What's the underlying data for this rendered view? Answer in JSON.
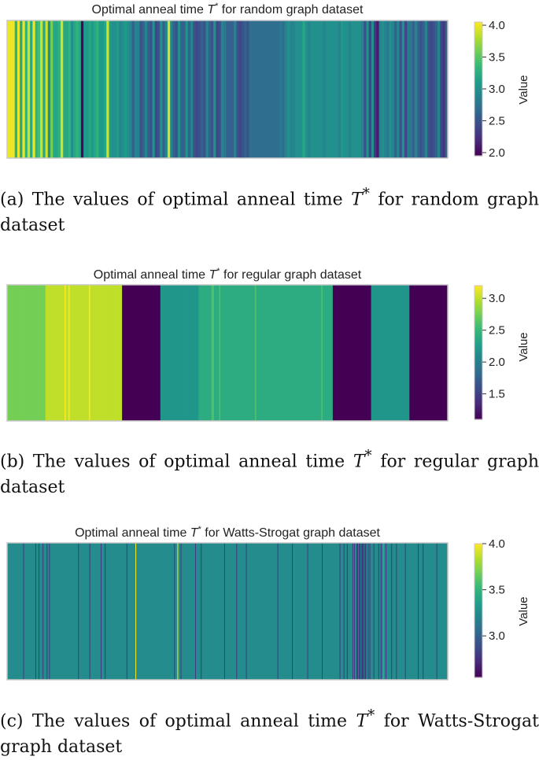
{
  "palette": [
    "#440154",
    "#482878",
    "#3e4989",
    "#31688e",
    "#26828e",
    "#1f9e89",
    "#35b779",
    "#6ece58",
    "#b5de2b",
    "#fde725"
  ],
  "chart_data": [
    {
      "type": "heatmap",
      "title": "Optimal anneal time T* for random graph dataset",
      "title_main": "Optimal anneal time ",
      "title_sym": "T",
      "title_sup": "*",
      "title_rest": " for random graph dataset",
      "colorbar_label": "Value",
      "vmin": 1.95,
      "vmax": 4.05,
      "colorbar_ticks": [
        2.0,
        2.5,
        3.0,
        3.5,
        4.0
      ],
      "colorbar_tick_labels": [
        "2.0",
        "2.5",
        "3.0",
        "3.5",
        "4.0"
      ],
      "values": [
        4.0,
        4.0,
        4.0,
        3.3,
        4.0,
        3.2,
        4.0,
        3.3,
        3.9,
        3.2,
        4.0,
        3.3,
        3.4,
        3.9,
        3.2,
        3.9,
        3.0,
        3.6,
        3.2,
        3.2,
        3.3,
        3.9,
        3.2,
        3.2,
        3.3,
        3.0,
        3.2,
        3.3,
        3.2,
        2.0,
        3.1,
        3.1,
        3.2,
        3.1,
        3.2,
        3.3,
        3.1,
        3.1,
        3.2,
        3.9,
        3.1,
        3.0,
        3.0,
        3.1,
        2.9,
        3.0,
        3.1,
        3.0,
        2.9,
        2.6,
        2.9,
        2.9,
        2.5,
        2.6,
        2.9,
        2.6,
        2.5,
        3.0,
        2.4,
        2.5,
        3.0,
        2.6,
        2.9,
        3.9,
        2.9,
        2.6,
        2.5,
        3.0,
        2.6,
        2.6,
        3.0,
        2.6,
        2.9,
        2.5,
        2.4,
        2.5,
        2.6,
        2.5,
        2.9,
        2.6,
        2.5,
        3.0,
        2.4,
        2.5,
        2.9,
        2.8,
        2.6,
        2.6,
        2.6,
        2.9,
        2.5,
        2.4,
        2.5,
        2.6,
        2.5,
        2.7,
        2.7,
        2.7,
        2.7,
        2.7,
        2.7,
        2.7,
        2.7,
        2.7,
        2.7,
        2.7,
        2.7,
        2.8,
        2.7,
        2.9,
        3.0,
        2.9,
        2.9,
        3.0,
        3.0,
        3.0,
        3.2,
        3.0,
        2.9,
        3.0,
        3.0,
        3.0,
        3.0,
        3.0,
        2.9,
        3.0,
        3.0,
        3.0,
        3.0,
        3.0,
        2.9,
        3.1,
        3.0,
        3.0,
        2.9,
        3.0,
        3.0,
        3.0,
        3.0,
        2.9,
        2.5,
        3.0,
        2.4,
        3.0,
        2.3,
        2.1,
        2.9,
        3.0,
        2.9,
        2.8,
        3.0,
        2.9,
        2.6,
        2.9,
        2.5,
        3.0,
        2.4,
        2.8,
        2.8,
        2.6,
        2.9,
        2.6,
        2.5,
        2.6,
        2.9,
        2.5,
        2.4,
        2.5,
        2.6,
        2.9,
        2.4,
        2.3,
        2.6
      ]
    },
    {
      "type": "heatmap",
      "title": "Optimal anneal time T* for regular graph dataset",
      "title_main": "Optimal anneal time ",
      "title_sym": "T",
      "title_sup": "*",
      "title_rest": " for regular graph dataset",
      "colorbar_label": "Value",
      "vmin": 1.1,
      "vmax": 3.2,
      "colorbar_ticks": [
        1.5,
        2.0,
        2.5,
        3.0
      ],
      "colorbar_tick_labels": [
        "1.5",
        "2.0",
        "2.5",
        "3.0"
      ],
      "values": [
        2.75,
        2.75,
        2.75,
        2.75,
        2.75,
        2.75,
        2.75,
        2.75,
        2.75,
        2.75,
        2.75,
        2.75,
        2.75,
        2.75,
        2.75,
        2.75,
        2.75,
        2.75,
        2.75,
        2.75,
        2.75,
        2.75,
        2.75,
        2.75,
        2.75,
        2.75,
        2.75,
        2.75,
        2.75,
        2.75,
        3.0,
        3.0,
        3.0,
        3.0,
        3.0,
        3.0,
        3.0,
        3.0,
        3.0,
        3.0,
        3.0,
        3.0,
        3.0,
        3.0,
        3.0,
        3.2,
        3.0,
        3.0,
        3.2,
        3.0,
        3.0,
        3.0,
        3.0,
        3.0,
        3.0,
        3.0,
        3.0,
        3.0,
        3.0,
        3.0,
        3.0,
        3.0,
        3.0,
        3.0,
        3.2,
        3.0,
        3.0,
        3.0,
        3.0,
        3.0,
        3.0,
        3.0,
        3.0,
        3.0,
        3.0,
        3.0,
        3.0,
        3.0,
        3.0,
        3.0,
        3.0,
        3.0,
        3.0,
        3.0,
        3.0,
        3.0,
        3.0,
        3.0,
        3.0,
        3.0,
        1.1,
        1.1,
        1.1,
        1.1,
        1.1,
        1.1,
        1.1,
        1.1,
        1.1,
        1.1,
        1.1,
        1.1,
        1.1,
        1.1,
        1.1,
        1.1,
        1.1,
        1.1,
        1.1,
        1.1,
        1.1,
        1.1,
        1.1,
        1.1,
        1.1,
        1.1,
        1.1,
        1.1,
        1.1,
        1.1,
        2.2,
        2.2,
        2.2,
        2.2,
        2.2,
        2.2,
        2.2,
        2.2,
        2.2,
        2.2,
        2.2,
        2.2,
        2.2,
        2.2,
        2.2,
        2.2,
        2.2,
        2.2,
        2.2,
        2.2,
        2.2,
        2.2,
        2.2,
        2.2,
        2.2,
        2.2,
        2.2,
        2.2,
        2.2,
        2.2,
        2.4,
        2.4,
        2.4,
        2.4,
        2.4,
        2.4,
        2.4,
        2.4,
        2.4,
        2.4,
        2.6,
        2.6,
        2.4,
        2.4,
        2.4,
        2.4,
        2.6,
        2.4,
        2.4,
        2.4,
        2.4,
        2.4,
        2.4,
        2.4,
        2.4,
        2.4,
        2.4,
        2.4,
        2.4,
        2.4,
        2.4,
        2.4,
        2.4,
        2.4,
        2.4,
        2.4,
        2.4,
        2.4,
        2.4,
        2.4,
        2.4,
        2.4,
        2.4,
        2.4,
        2.6,
        2.4,
        2.4,
        2.4,
        2.4,
        2.4,
        2.4,
        2.4,
        2.4,
        2.4,
        2.4,
        2.4,
        2.4,
        2.4,
        2.4,
        2.4,
        2.4,
        2.4,
        2.4,
        2.4,
        2.4,
        2.4,
        2.4,
        2.4,
        2.4,
        2.4,
        2.4,
        2.4,
        2.4,
        2.4,
        2.4,
        2.4,
        2.4,
        2.4,
        2.4,
        2.4,
        2.4,
        2.4,
        2.4,
        2.4,
        2.4,
        2.4,
        2.4,
        2.4,
        2.4,
        2.4,
        2.4,
        2.4,
        2.4,
        2.4,
        2.4,
        2.4,
        2.6,
        2.4,
        2.4,
        2.4,
        2.4,
        2.4,
        2.4,
        2.4,
        2.4,
        1.1,
        1.1,
        1.1,
        1.1,
        1.1,
        1.1,
        1.1,
        1.1,
        1.1,
        1.1,
        1.1,
        1.1,
        1.1,
        1.1,
        1.1,
        1.1,
        1.1,
        1.1,
        1.1,
        1.1,
        1.1,
        1.1,
        1.1,
        1.1,
        1.1,
        1.1,
        1.1,
        1.1,
        1.1,
        1.1,
        2.2,
        2.2,
        2.2,
        2.2,
        2.2,
        2.2,
        2.2,
        2.2,
        2.2,
        2.2,
        2.2,
        2.2,
        2.2,
        2.2,
        2.2,
        2.2,
        2.2,
        2.2,
        2.2,
        2.2,
        2.2,
        2.2,
        2.2,
        2.2,
        2.2,
        2.2,
        2.2,
        2.2,
        2.2,
        2.2,
        1.1,
        1.1,
        1.1,
        1.1,
        1.1,
        1.1,
        1.1,
        1.1,
        1.1,
        1.1,
        1.1,
        1.1,
        1.1,
        1.1,
        1.1,
        1.1,
        1.1,
        1.1,
        1.1,
        1.1,
        1.1,
        1.1,
        1.1,
        1.1,
        1.1,
        1.1,
        1.1,
        1.1,
        1.1,
        1.1
      ]
    },
    {
      "type": "heatmap",
      "title": "Optimal anneal time T* for Watts-Strogat graph dataset",
      "title_main": "Optimal anneal time ",
      "title_sym": "T",
      "title_sup": "*",
      "title_rest": " for Watts-Strogat graph dataset",
      "colorbar_label": "Value",
      "vmin": 2.55,
      "vmax": 4.0,
      "colorbar_ticks": [
        3.0,
        3.5,
        4.0
      ],
      "colorbar_tick_labels": [
        "3.0",
        "3.5",
        "4.0"
      ],
      "values": [
        3.25,
        3.25,
        3.25,
        3.25,
        3.25,
        3.25,
        3.25,
        3.25,
        3.25,
        3.25,
        3.25,
        3.25,
        3.25,
        3.25,
        3.25,
        3.25,
        3.25,
        3.25,
        3.25,
        3.25,
        2.8,
        3.25,
        3.25,
        3.25,
        3.25,
        3.25,
        3.25,
        3.25,
        3.25,
        3.25,
        3.25,
        3.25,
        3.25,
        3.25,
        3.25,
        2.8,
        3.25,
        3.25,
        3.25,
        2.8,
        3.25,
        3.25,
        3.25,
        3.25,
        2.8,
        3.25,
        3.25,
        3.25,
        3.25,
        2.8,
        3.25,
        3.25,
        2.8,
        3.25,
        3.25,
        3.25,
        3.25,
        3.25,
        3.25,
        3.25,
        3.25,
        3.25,
        3.25,
        3.25,
        3.25,
        3.25,
        3.25,
        3.25,
        3.25,
        3.25,
        3.25,
        3.25,
        3.25,
        3.25,
        3.25,
        3.25,
        3.25,
        3.25,
        3.25,
        3.25,
        3.25,
        3.25,
        3.25,
        3.25,
        3.25,
        3.25,
        3.25,
        3.25,
        2.8,
        3.25,
        3.25,
        3.25,
        3.25,
        3.25,
        3.25,
        3.25,
        3.25,
        3.25,
        3.25,
        3.25,
        3.25,
        3.25,
        2.8,
        3.25,
        3.25,
        3.25,
        3.25,
        3.25,
        3.25,
        3.25,
        3.25,
        3.25,
        3.25,
        3.25,
        3.25,
        3.25,
        2.8,
        3.25,
        3.25,
        3.25,
        3.25,
        2.8,
        3.25,
        3.25,
        3.25,
        3.25,
        3.25,
        3.25,
        3.25,
        3.25,
        3.25,
        3.25,
        3.25,
        3.25,
        3.25,
        3.25,
        3.25,
        3.25,
        3.25,
        3.25,
        3.25,
        3.25,
        3.25,
        3.25,
        3.25,
        3.25,
        3.25,
        3.25,
        2.8,
        3.25,
        3.25,
        3.25,
        3.25,
        3.25,
        3.25,
        3.25,
        3.25,
        3.25,
        3.25,
        4.0,
        3.25,
        3.25,
        3.25,
        3.25,
        3.25,
        3.25,
        3.25,
        3.25,
        3.25,
        3.25,
        3.25,
        3.25,
        3.25,
        3.25,
        3.25,
        3.25,
        3.25,
        3.25,
        3.25,
        3.25,
        3.25,
        3.25,
        3.25,
        3.25,
        3.25,
        3.25,
        3.25,
        3.25,
        3.25,
        3.25,
        3.25,
        3.25,
        3.25,
        3.25,
        3.25,
        3.25,
        3.25,
        3.25,
        3.25,
        3.25,
        3.25,
        3.25,
        3.25,
        3.25,
        3.25,
        3.25,
        3.25,
        2.8,
        3.25,
        3.25,
        3.25,
        4.0,
        3.25,
        3.25,
        3.25,
        2.8,
        3.25,
        3.25,
        3.25,
        3.25,
        3.25,
        3.25,
        3.25,
        3.25,
        3.25,
        3.25,
        3.25,
        3.25,
        3.25,
        3.25,
        3.25,
        3.25,
        3.25,
        2.8,
        3.25,
        3.25,
        3.25,
        3.25,
        3.25,
        3.25,
        2.8,
        3.25,
        3.25,
        3.25,
        3.25,
        3.25,
        3.25,
        3.25,
        3.25,
        3.25,
        3.25,
        3.25,
        3.25,
        3.25,
        3.25,
        3.25,
        3.25,
        3.25,
        3.25,
        3.25,
        3.25,
        3.25,
        3.25,
        3.25,
        3.25,
        3.25,
        3.25,
        3.25,
        3.25,
        2.8,
        3.25,
        3.25,
        3.25,
        3.25,
        3.25,
        3.25,
        3.25,
        3.25,
        3.25,
        3.25,
        3.25,
        3.25,
        3.25,
        3.25,
        2.8,
        3.25,
        3.25,
        3.25,
        3.25,
        3.25,
        3.25,
        3.25,
        3.25,
        3.25,
        3.25,
        3.25,
        2.8,
        3.25,
        3.25,
        3.25,
        3.25,
        3.25,
        3.25,
        3.25,
        3.25,
        3.25,
        3.25,
        3.25,
        3.25,
        3.25,
        3.25,
        3.25,
        3.25,
        3.25,
        3.25,
        3.25,
        3.25,
        3.25,
        3.25,
        3.25,
        3.25,
        3.25,
        3.25,
        3.25,
        3.25,
        3.25,
        3.25,
        3.25,
        3.25,
        3.25,
        3.25,
        3.25,
        3.25,
        3.25,
        3.25,
        2.8,
        3.25,
        3.25,
        3.25,
        3.25,
        3.25,
        3.25,
        3.25,
        3.25,
        3.25,
        3.25,
        3.25,
        3.25,
        3.25,
        3.25,
        3.25,
        3.25,
        3.25,
        2.8,
        3.25,
        3.25,
        3.25,
        3.25,
        3.25,
        3.25,
        3.25,
        3.25,
        3.25,
        3.25,
        3.25,
        3.25,
        3.25,
        3.25,
        3.25,
        3.25,
        3.25,
        3.25,
        2.8,
        3.25,
        3.25,
        3.25,
        3.25,
        3.25,
        3.25,
        3.25,
        3.25,
        3.25,
        3.25,
        3.25,
        3.25,
        3.25,
        3.25,
        3.25,
        3.25,
        3.25,
        2.8,
        3.25,
        3.25,
        3.25,
        3.25,
        3.25,
        3.25,
        3.25,
        3.25,
        3.25,
        3.25,
        3.25,
        3.25,
        3.25,
        3.25,
        3.25,
        3.25,
        3.25,
        3.25,
        3.25,
        3.25,
        3.25,
        2.8,
        3.25,
        3.25,
        3.25,
        3.25,
        2.8,
        3.25,
        3.25,
        3.25,
        2.8,
        3.25,
        3.25,
        3.25,
        3.25,
        3.25,
        3.25,
        2.8,
        3.25,
        2.8,
        3.25,
        3.25,
        2.8,
        2.8,
        3.25,
        2.8,
        2.8,
        3.25,
        2.8,
        2.8,
        2.8,
        3.25,
        2.8,
        2.8,
        3.25,
        3.25,
        2.8,
        3.25,
        2.8,
        3.25,
        3.25,
        3.25,
        3.25,
        2.8,
        3.25,
        3.25,
        3.25,
        3.25,
        3.25,
        2.8,
        3.25,
        3.25,
        2.8,
        3.25,
        3.25,
        3.5,
        3.25,
        3.25,
        2.8,
        3.25,
        3.25,
        3.25,
        3.25,
        3.25,
        3.25,
        2.8,
        3.25,
        3.25,
        3.25,
        3.25,
        3.25,
        2.8,
        3.25,
        3.25,
        3.25,
        3.25,
        3.25,
        3.25,
        3.25,
        3.25,
        3.25,
        3.25,
        2.8,
        3.25,
        3.25,
        3.25,
        3.25,
        3.25,
        3.25,
        3.25,
        3.25,
        3.25,
        3.25,
        3.25,
        3.25,
        3.25,
        3.25,
        3.25,
        2.8,
        3.25,
        3.25,
        3.25,
        3.25,
        3.25,
        2.8,
        3.25,
        3.25,
        3.25,
        3.25,
        3.25,
        3.25,
        3.25,
        3.25,
        3.25,
        3.25,
        3.25,
        3.25,
        3.25,
        3.25,
        3.25,
        3.25,
        2.8,
        3.25,
        3.25,
        3.25,
        3.25,
        3.25,
        3.25,
        3.25,
        3.25,
        3.25,
        3.25,
        3.25,
        3.25,
        3.25
      ]
    }
  ],
  "captions": [
    {
      "label": "(a)",
      "pre": " The values of optimal anneal time ",
      "sym": "T",
      "sup": "*",
      "post": " for random graph dataset"
    },
    {
      "label": "(b)",
      "pre": " The values of optimal anneal time ",
      "sym": "T",
      "sup": "*",
      "post": " for regular graph dataset"
    },
    {
      "label": "(c)",
      "pre": " The values of optimal anneal time ",
      "sym": "T",
      "sup": "*",
      "post": " for Watts-Strogat graph dataset"
    }
  ]
}
